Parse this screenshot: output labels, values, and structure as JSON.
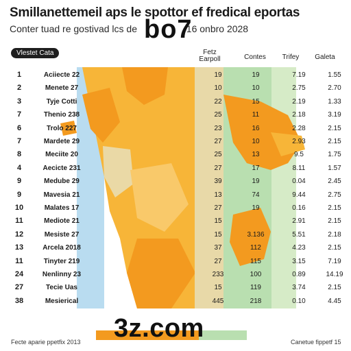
{
  "header": {
    "title": "Smillanettemeil aps le spottor ef fredical eportas",
    "subtitle": "Conter tuad re gostivad lcs de",
    "subtitle_tail": "16 onbro 2028",
    "overlay_code": "bo7",
    "tag": "Vlestet Cata"
  },
  "columns": {
    "col1": "Fetz Earpoll",
    "col2": "Contes",
    "col3": "Trifey",
    "col4": "Galeta"
  },
  "chart_data": {
    "type": "table",
    "columns": [
      "",
      "",
      "Fetz Earpoll",
      "Contes",
      "Trifey",
      "Galeta"
    ],
    "rows": [
      {
        "rank": "1",
        "name": "Aciiecte 22",
        "c1": "19",
        "c2": "19",
        "c3": "7.19",
        "c4": "1.55"
      },
      {
        "rank": "2",
        "name": "Menete 27",
        "c1": "10",
        "c2": "10",
        "c3": "2.75",
        "c4": "2.70"
      },
      {
        "rank": "3",
        "name": "Tyje Cotti",
        "c1": "22",
        "c2": "15",
        "c3": "2.19",
        "c4": "1.33"
      },
      {
        "rank": "7",
        "name": "Thenio 238",
        "c1": "25",
        "c2": "11",
        "c3": "2.18",
        "c4": "3.19"
      },
      {
        "rank": "6",
        "name": "Trolo 227",
        "c1": "23",
        "c2": "16",
        "c3": "2.28",
        "c4": "2.15"
      },
      {
        "rank": "7",
        "name": "Mardete 29",
        "c1": "27",
        "c2": "10",
        "c3": "2.93",
        "c4": "2.15"
      },
      {
        "rank": "8",
        "name": "Meciite 20",
        "c1": "25",
        "c2": "13",
        "c3": "9.5",
        "c4": "1.75"
      },
      {
        "rank": "4",
        "name": "Aecicte 231",
        "c1": "27",
        "c2": "17",
        "c3": "8.11",
        "c4": "1.57"
      },
      {
        "rank": "9",
        "name": "Medube 29",
        "c1": "39",
        "c2": "19",
        "c3": "0.04",
        "c4": "2.45"
      },
      {
        "rank": "9",
        "name": "Mavesia 21",
        "c1": "13",
        "c2": "74",
        "c3": "9.44",
        "c4": "2.75"
      },
      {
        "rank": "10",
        "name": "Malates 17",
        "c1": "27",
        "c2": "19",
        "c3": "0.16",
        "c4": "2.15"
      },
      {
        "rank": "11",
        "name": "Mediote 21",
        "c1": "15",
        "c2": "",
        "c3": "2.91",
        "c4": "2.15"
      },
      {
        "rank": "12",
        "name": "Mesiste 27",
        "c1": "15",
        "c2": "3.136",
        "c3": "5.51",
        "c4": "2.18"
      },
      {
        "rank": "13",
        "name": "Arcela 2018",
        "c1": "37",
        "c2": "112",
        "c3": "4.23",
        "c4": "2.15"
      },
      {
        "rank": "11",
        "name": "Tinyter 219",
        "c1": "27",
        "c2": "115",
        "c3": "3.15",
        "c4": "7.19"
      },
      {
        "rank": "24",
        "name": "Nenlinny 23",
        "c1": "233",
        "c2": "100",
        "c3": "0.89",
        "c4": "14.19"
      },
      {
        "rank": "27",
        "name": "Tecie Uas",
        "c1": "15",
        "c2": "119",
        "c3": "3.74",
        "c4": "2.15"
      },
      {
        "rank": "38",
        "name": "Mesierical",
        "c1": "445",
        "c2": "218",
        "c3": "0.10",
        "c4": "4.45"
      }
    ]
  },
  "footer": {
    "left": "Fecte aparie ppetfix 2013",
    "right": "Canetue fippetf 15",
    "watermark": "3z.com"
  },
  "colors": {
    "orange_dark": "#f39a1f",
    "orange_mid": "#f7b538",
    "orange_light": "#f9c96a",
    "beige": "#ead9a6",
    "blue": "#b9dcf0",
    "green": "#b9dfb0",
    "green_light": "#d6ebc7"
  }
}
